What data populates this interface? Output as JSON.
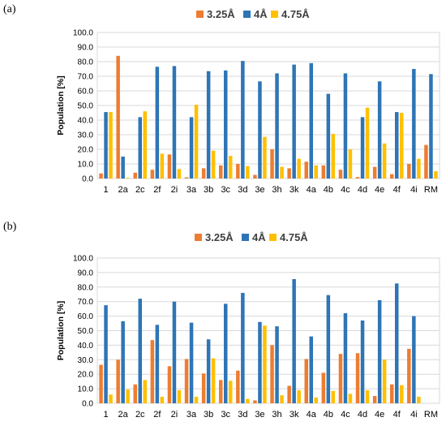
{
  "colors": {
    "s0": "#ED7D31",
    "s1": "#2E75B6",
    "s2": "#FFC000"
  },
  "chart_data": [
    {
      "type": "bar",
      "panel_label": "(a)",
      "title": "",
      "xlabel": "",
      "ylabel": "Population [%]",
      "ylim": [
        0,
        100
      ],
      "yticks": [
        "0.0",
        "10.0",
        "20.0",
        "30.0",
        "40.0",
        "50.0",
        "60.0",
        "70.0",
        "80.0",
        "90.0",
        "100.0"
      ],
      "grid": true,
      "legend_position": "top",
      "categories": [
        "1",
        "2a",
        "2c",
        "2f",
        "2i",
        "3a",
        "3b",
        "3c",
        "3d",
        "3e",
        "3h",
        "3k",
        "4a",
        "4b",
        "4c",
        "4d",
        "4e",
        "4f",
        "4i",
        "RM"
      ],
      "series": [
        {
          "name": "3.25Å",
          "values": [
            3.5,
            84.0,
            4.0,
            6.0,
            16.5,
            0.8,
            7.0,
            9.0,
            10.0,
            2.5,
            20.0,
            7.0,
            11.5,
            9.0,
            6.0,
            1.0,
            8.0,
            3.0,
            10.0,
            23.0
          ]
        },
        {
          "name": "4Å",
          "values": [
            45.5,
            15.0,
            42.0,
            76.5,
            77.0,
            42.0,
            73.5,
            74.0,
            80.5,
            66.5,
            72.0,
            78.0,
            79.0,
            58.0,
            72.0,
            42.0,
            66.5,
            45.5,
            75.0,
            71.5
          ]
        },
        {
          "name": "4.75Å",
          "values": [
            45.5,
            0.5,
            46.0,
            17.0,
            6.5,
            50.5,
            19.0,
            15.5,
            8.5,
            28.5,
            8.0,
            13.5,
            9.0,
            30.5,
            20.0,
            48.5,
            24.0,
            45.0,
            13.5,
            5.0
          ]
        }
      ]
    },
    {
      "type": "bar",
      "panel_label": "(b)",
      "title": "",
      "xlabel": "",
      "ylabel": "Population [%]",
      "ylim": [
        0,
        100
      ],
      "yticks": [
        "0.0",
        "10.0",
        "20.0",
        "30.0",
        "40.0",
        "50.0",
        "60.0",
        "70.0",
        "80.0",
        "90.0",
        "100.0"
      ],
      "grid": true,
      "legend_position": "top",
      "categories": [
        "1",
        "2a",
        "2c",
        "2f",
        "2i",
        "3a",
        "3b",
        "3c",
        "3d",
        "3e",
        "3h",
        "3k",
        "4a",
        "4b",
        "4c",
        "4d",
        "4e",
        "4f",
        "4i",
        "RM"
      ],
      "series": [
        {
          "name": "3.25Å",
          "values": [
            26.5,
            30.0,
            13.0,
            43.5,
            25.5,
            30.5,
            20.5,
            16.0,
            22.5,
            2.0,
            40.0,
            12.0,
            30.5,
            21.0,
            34.0,
            34.5,
            5.0,
            13.0,
            37.5,
            0.0
          ]
        },
        {
          "name": "4Å",
          "values": [
            67.5,
            56.5,
            72.0,
            54.0,
            70.0,
            55.5,
            44.0,
            68.5,
            76.0,
            56.0,
            53.0,
            85.5,
            46.0,
            74.5,
            62.0,
            57.0,
            71.0,
            82.5,
            60.0,
            0.0
          ]
        },
        {
          "name": "4.75Å",
          "values": [
            6.0,
            9.5,
            16.0,
            4.5,
            9.0,
            4.5,
            31.0,
            15.5,
            3.0,
            53.5,
            5.5,
            9.0,
            4.0,
            8.5,
            6.5,
            9.0,
            30.0,
            12.5,
            4.5,
            0.0
          ]
        }
      ]
    }
  ]
}
